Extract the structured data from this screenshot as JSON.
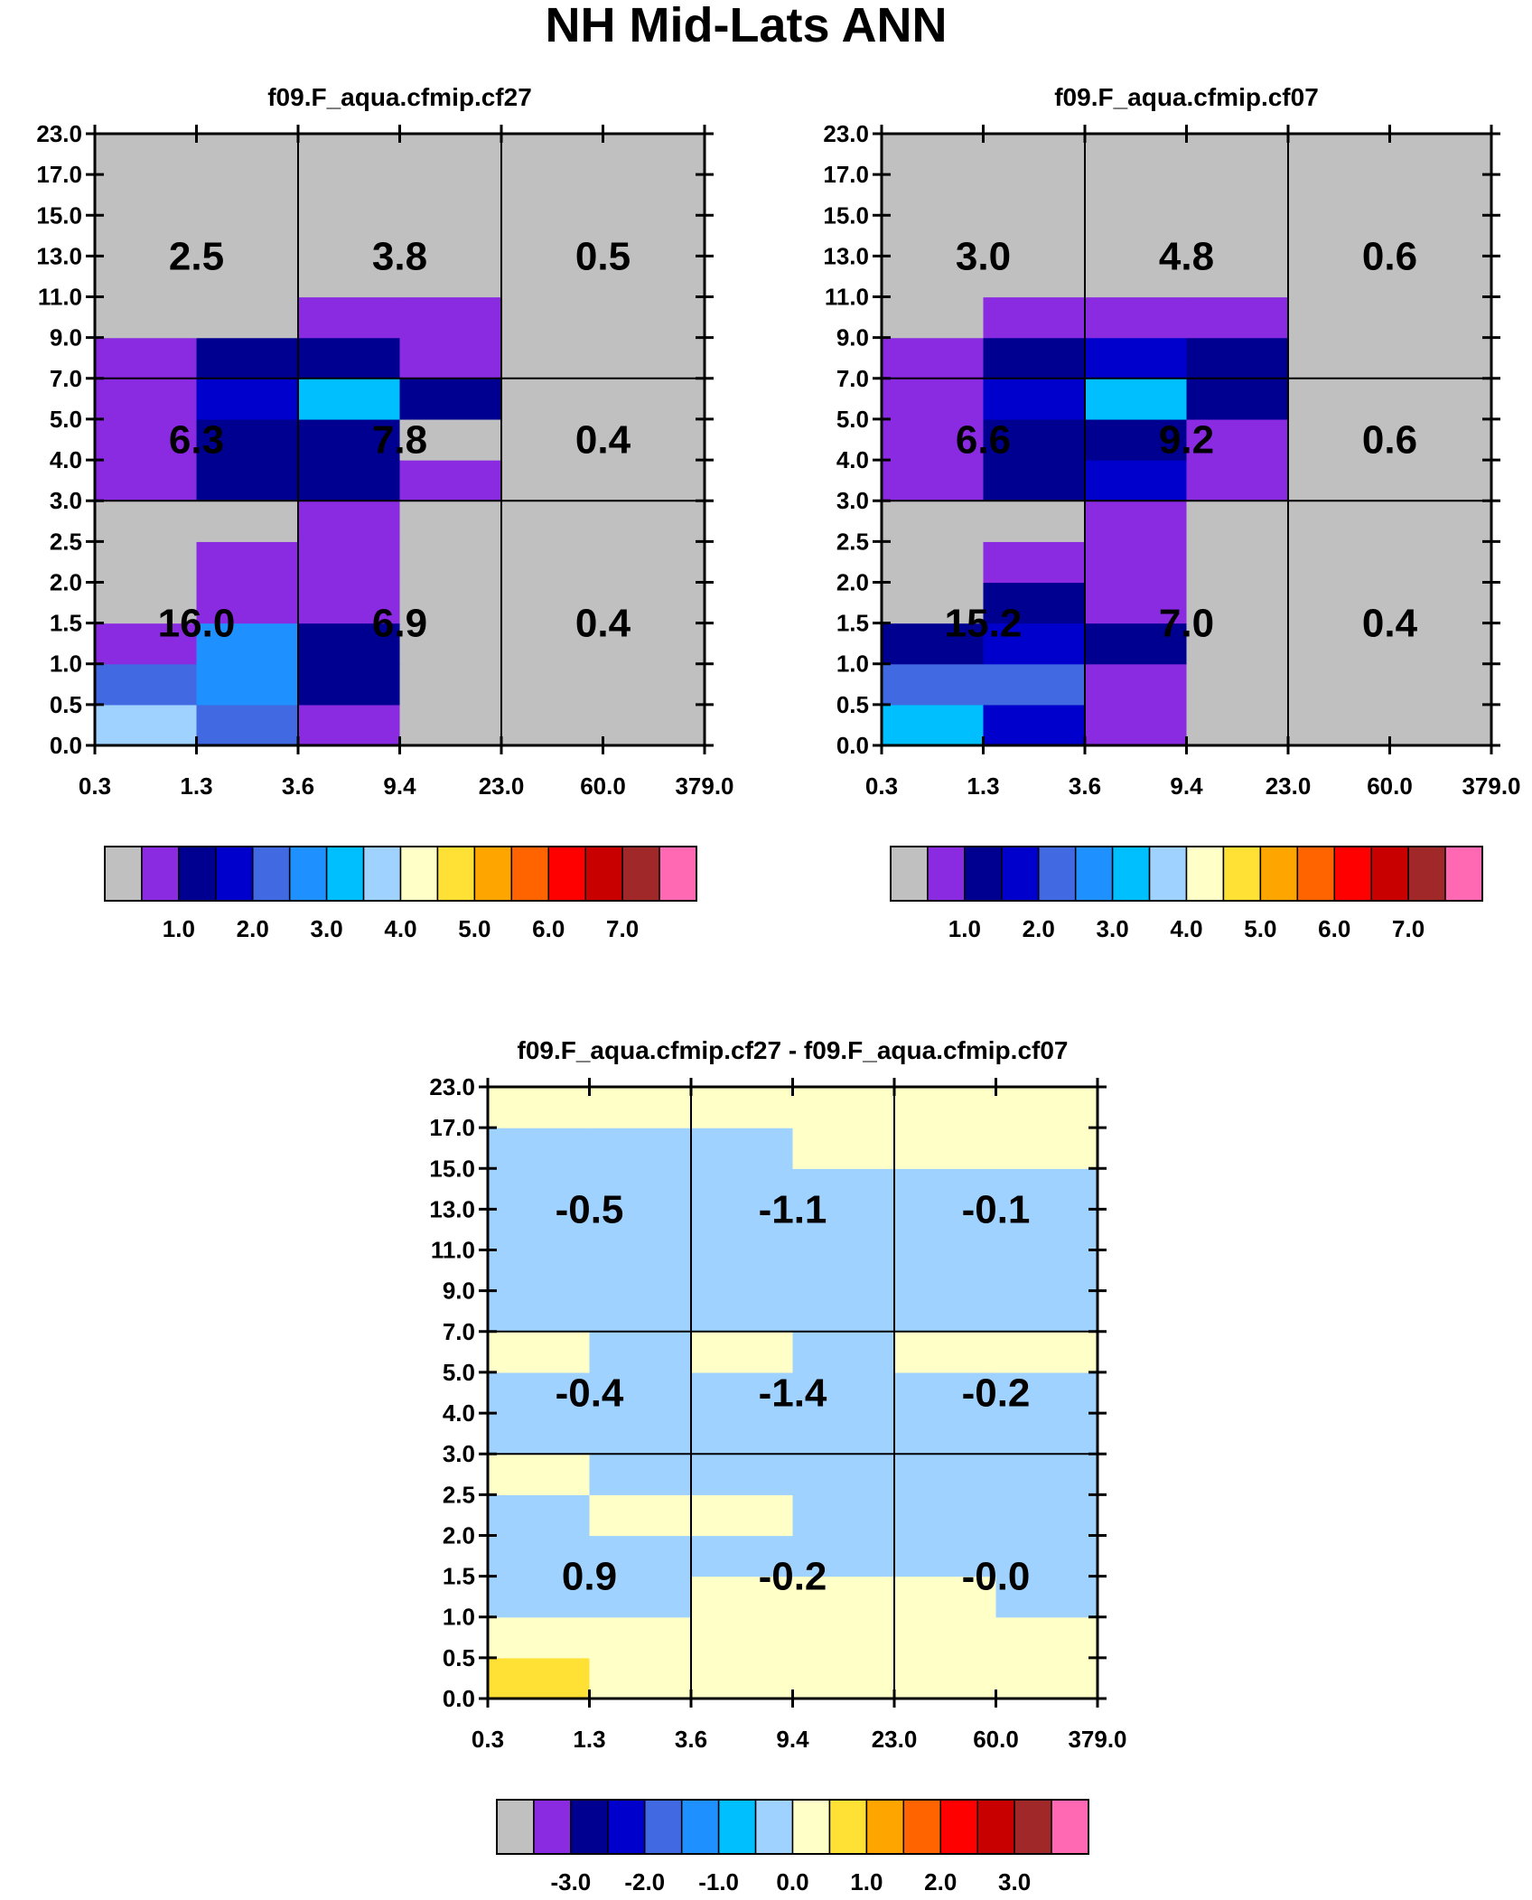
{
  "figure": {
    "title": "NH Mid-Lats ANN"
  },
  "palette": {
    "abs": [
      "#c0c0c0",
      "#8a2be2",
      "#000090",
      "#0000cd",
      "#4169e1",
      "#1e90ff",
      "#00bfff",
      "#a0d2ff",
      "#ffffc8",
      "#ffe135",
      "#ffa500",
      "#ff6400",
      "#ff0000",
      "#c80000",
      "#a02828",
      "#ff69b4"
    ],
    "diff": [
      "#c0c0c0",
      "#8a2be2",
      "#000090",
      "#0000cd",
      "#4169e1",
      "#1e90ff",
      "#00bfff",
      "#a0d2ff",
      "#ffffc8",
      "#ffe135",
      "#ffa500",
      "#ff6400",
      "#ff0000",
      "#c80000",
      "#a02828",
      "#ff69b4"
    ]
  },
  "chart_data": [
    {
      "type": "heatmap",
      "id": "p1",
      "title": "f09.F_aqua.cfmip.cf27",
      "x_ticks": [
        "0.3",
        "1.3",
        "3.6",
        "9.4",
        "23.0",
        "60.0",
        "379.0"
      ],
      "y_ticks": [
        "0.0",
        "0.5",
        "1.0",
        "1.5",
        "2.0",
        "2.5",
        "3.0",
        "4.0",
        "5.0",
        "7.0",
        "9.0",
        "11.0",
        "13.0",
        "15.0",
        "17.0",
        "23.0"
      ],
      "grid_color_index": [
        [
          7,
          4,
          1,
          0,
          0,
          0
        ],
        [
          4,
          5,
          2,
          0,
          0,
          0
        ],
        [
          1,
          5,
          2,
          0,
          0,
          0
        ],
        [
          0,
          1,
          1,
          0,
          0,
          0
        ],
        [
          0,
          1,
          1,
          0,
          0,
          0
        ],
        [
          0,
          0,
          1,
          0,
          0,
          0
        ],
        [
          1,
          2,
          2,
          1,
          0,
          0
        ],
        [
          1,
          2,
          2,
          0,
          0,
          0
        ],
        [
          1,
          3,
          6,
          2,
          0,
          0
        ],
        [
          1,
          2,
          2,
          1,
          0,
          0
        ],
        [
          0,
          0,
          1,
          1,
          0,
          0
        ],
        [
          0,
          0,
          0,
          0,
          0,
          0
        ],
        [
          0,
          0,
          0,
          0,
          0,
          0
        ],
        [
          0,
          0,
          0,
          0,
          0,
          0
        ],
        [
          0,
          0,
          0,
          0,
          0,
          0
        ]
      ],
      "box_values": [
        [
          "16.0",
          "6.9",
          "0.4"
        ],
        [
          "6.3",
          "7.8",
          "0.4"
        ],
        [
          "2.5",
          "3.8",
          "0.5"
        ]
      ],
      "colorbar": {
        "palette": "abs",
        "labels": [
          "1.0",
          "2.0",
          "3.0",
          "4.0",
          "5.0",
          "6.0",
          "7.0"
        ]
      }
    },
    {
      "type": "heatmap",
      "id": "p2",
      "title": "f09.F_aqua.cfmip.cf07",
      "x_ticks": [
        "0.3",
        "1.3",
        "3.6",
        "9.4",
        "23.0",
        "60.0",
        "379.0"
      ],
      "y_ticks": [
        "0.0",
        "0.5",
        "1.0",
        "1.5",
        "2.0",
        "2.5",
        "3.0",
        "4.0",
        "5.0",
        "7.0",
        "9.0",
        "11.0",
        "13.0",
        "15.0",
        "17.0",
        "23.0"
      ],
      "grid_color_index": [
        [
          6,
          3,
          1,
          0,
          0,
          0
        ],
        [
          4,
          4,
          1,
          0,
          0,
          0
        ],
        [
          2,
          3,
          2,
          0,
          0,
          0
        ],
        [
          0,
          2,
          1,
          0,
          0,
          0
        ],
        [
          0,
          1,
          1,
          0,
          0,
          0
        ],
        [
          0,
          0,
          1,
          0,
          0,
          0
        ],
        [
          1,
          2,
          3,
          1,
          0,
          0
        ],
        [
          1,
          2,
          2,
          1,
          0,
          0
        ],
        [
          1,
          3,
          6,
          2,
          0,
          0
        ],
        [
          1,
          2,
          3,
          2,
          0,
          0
        ],
        [
          0,
          1,
          1,
          1,
          0,
          0
        ],
        [
          0,
          0,
          0,
          0,
          0,
          0
        ],
        [
          0,
          0,
          0,
          0,
          0,
          0
        ],
        [
          0,
          0,
          0,
          0,
          0,
          0
        ],
        [
          0,
          0,
          0,
          0,
          0,
          0
        ]
      ],
      "box_values": [
        [
          "15.2",
          "7.0",
          "0.4"
        ],
        [
          "6.6",
          "9.2",
          "0.6"
        ],
        [
          "3.0",
          "4.8",
          "0.6"
        ]
      ],
      "colorbar": {
        "palette": "abs",
        "labels": [
          "1.0",
          "2.0",
          "3.0",
          "4.0",
          "5.0",
          "6.0",
          "7.0"
        ]
      }
    },
    {
      "type": "heatmap",
      "id": "p3",
      "title": "f09.F_aqua.cfmip.cf27 - f09.F_aqua.cfmip.cf07",
      "x_ticks": [
        "0.3",
        "1.3",
        "3.6",
        "9.4",
        "23.0",
        "60.0",
        "379.0"
      ],
      "y_ticks": [
        "0.0",
        "0.5",
        "1.0",
        "1.5",
        "2.0",
        "2.5",
        "3.0",
        "4.0",
        "5.0",
        "7.0",
        "9.0",
        "11.0",
        "13.0",
        "15.0",
        "17.0",
        "23.0"
      ],
      "grid_color_index": [
        [
          9,
          8,
          8,
          8,
          8,
          8
        ],
        [
          8,
          8,
          8,
          8,
          8,
          8
        ],
        [
          7,
          7,
          8,
          8,
          8,
          7
        ],
        [
          7,
          7,
          7,
          7,
          7,
          7
        ],
        [
          7,
          8,
          8,
          7,
          7,
          7
        ],
        [
          8,
          7,
          7,
          7,
          7,
          7
        ],
        [
          7,
          7,
          7,
          7,
          7,
          7
        ],
        [
          7,
          7,
          7,
          7,
          7,
          7
        ],
        [
          8,
          7,
          8,
          7,
          8,
          8
        ],
        [
          7,
          7,
          7,
          7,
          7,
          7
        ],
        [
          7,
          7,
          7,
          7,
          7,
          7
        ],
        [
          7,
          7,
          7,
          7,
          7,
          7
        ],
        [
          7,
          7,
          7,
          7,
          7,
          7
        ],
        [
          7,
          7,
          7,
          8,
          8,
          8
        ],
        [
          8,
          8,
          8,
          8,
          8,
          8
        ]
      ],
      "box_values": [
        [
          "0.9",
          "-0.2",
          "-0.0"
        ],
        [
          "-0.4",
          "-1.4",
          "-0.2"
        ],
        [
          "-0.5",
          "-1.1",
          "-0.1"
        ]
      ],
      "colorbar": {
        "palette": "diff",
        "labels": [
          "-3.0",
          "-2.0",
          "-1.0",
          "0.0",
          "1.0",
          "2.0",
          "3.0"
        ]
      }
    }
  ]
}
